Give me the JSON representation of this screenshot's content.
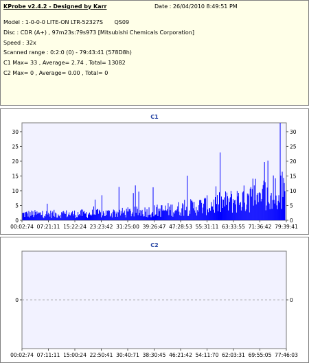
{
  "info": {
    "app_title": "KProbe v2.4.2 - Designed by Karr",
    "date": "Date : 26/04/2010 8:49:51 PM",
    "model": "Model : 1-0-0-0 LITE-ON LTR-52327S",
    "model_fw": "QS09",
    "disc": "Disc : CDR (A+) , 97m23s:79s973 [Mitsubishi Chemicals Corporation]",
    "speed": "Speed : 32x",
    "range": "Scanned range : 0:2:0 (0) - 79:43:41 (578D8h)",
    "c1_stats": "C1 Max= 33 , Average= 2.74 , Total= 13082",
    "c2_stats": "C2 Max= 0 , Average= 0.00 , Total= 0"
  },
  "chart_data": [
    {
      "type": "bar",
      "title": "C1",
      "ylim": [
        0,
        33
      ],
      "yticks": [
        "0",
        "5",
        "10",
        "15",
        "20",
        "25",
        "30"
      ],
      "xticks": [
        "00:02:74",
        "07:21:11",
        "15:22:24",
        "23:23:42",
        "31:25:00",
        "39:26:47",
        "47:28:53",
        "55:31:11",
        "63:33:55",
        "71:36:42",
        "79:39:41"
      ],
      "max": 33,
      "average": 2.74,
      "total": 13082,
      "color": "#0000ff"
    },
    {
      "type": "bar",
      "title": "C2",
      "ylim": [
        -1,
        1
      ],
      "yticks": [
        "0"
      ],
      "xticks": [
        "00:02:74",
        "07:11:11",
        "15:00:24",
        "22:50:41",
        "30:40:71",
        "38:30:45",
        "46:21:42",
        "54:11:70",
        "62:03:31",
        "69:55:05",
        "77:46:03"
      ],
      "max": 0,
      "average": 0.0,
      "total": 0,
      "color": "#0000ff"
    }
  ]
}
